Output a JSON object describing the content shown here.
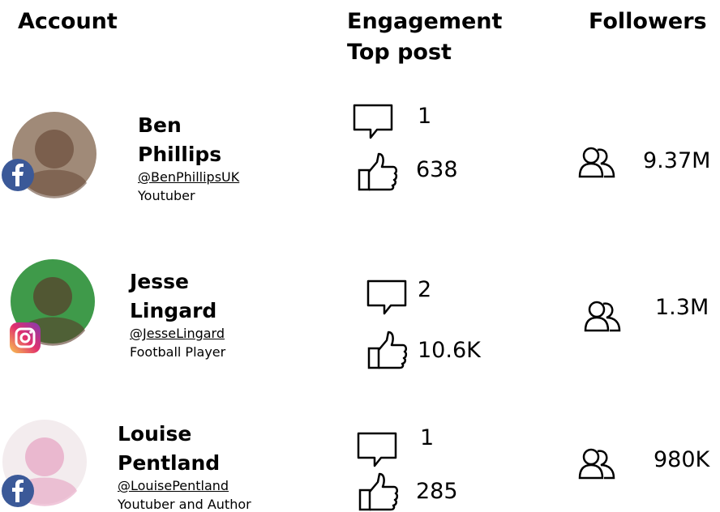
{
  "header": {
    "account": "Account",
    "engagement": "Engagement Top post",
    "followers": "Followers"
  },
  "rows": [
    {
      "name": "Ben Phillips",
      "handle": "@BenPhillipsUK",
      "role": "Youtuber",
      "comments": "1",
      "likes": "638",
      "followers": "9.37M"
    },
    {
      "name": "Jesse Lingard",
      "handle": "@JesseLingard",
      "role": "Football Player",
      "comments": "2",
      "likes": "10.6K",
      "followers": "1.3M"
    },
    {
      "name": "Louise Pentland",
      "handle": "@LouisePentland",
      "role": "Youtuber and Author",
      "comments": "1",
      "likes": "285",
      "followers": "980K"
    }
  ]
}
